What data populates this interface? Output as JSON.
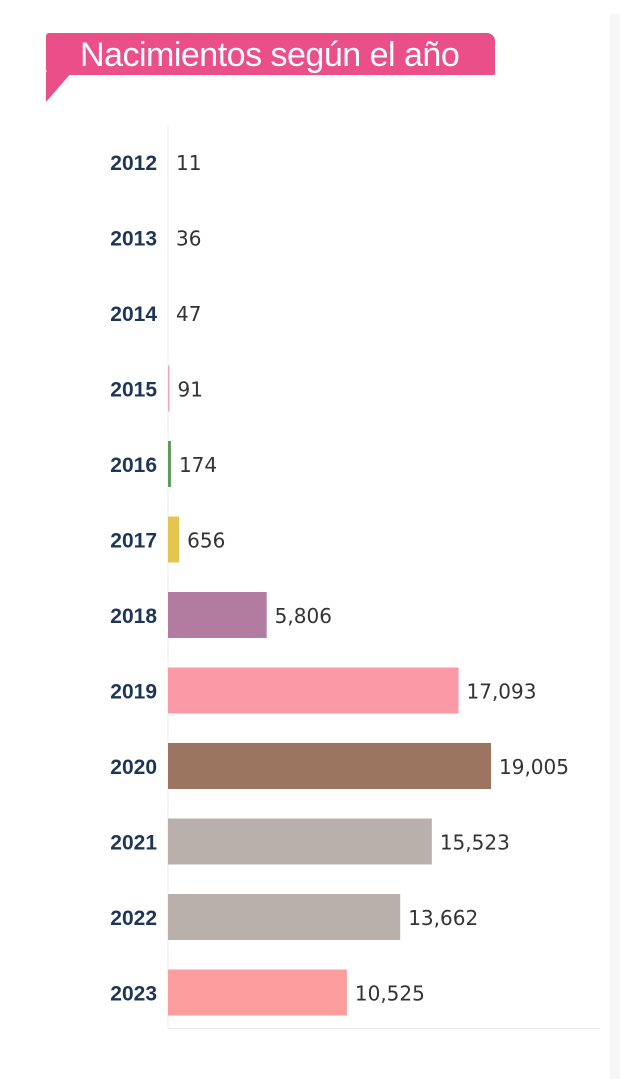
{
  "title": "Nacimientos según el año",
  "chart_data": {
    "type": "bar",
    "orientation": "horizontal",
    "categories": [
      "2012",
      "2013",
      "2014",
      "2015",
      "2016",
      "2017",
      "2018",
      "2019",
      "2020",
      "2021",
      "2022",
      "2023"
    ],
    "values": [
      11,
      36,
      47,
      91,
      174,
      656,
      5806,
      17093,
      19005,
      15523,
      13662,
      10525
    ],
    "value_labels": [
      "11",
      "36",
      "47",
      "91",
      "174",
      "656",
      "5,806",
      "17,093",
      "19,005",
      "15,523",
      "13,662",
      "10,525"
    ],
    "colors": [
      "#f2a7b4",
      "#f2a7b4",
      "#f2a7b4",
      "#f2a7b4",
      "#5f9c5a",
      "#e6c450",
      "#b27ba0",
      "#fb9aa6",
      "#9b7560",
      "#b9b0ab",
      "#b9b0ab",
      "#fb9d9c"
    ],
    "title": "Nacimientos según el año",
    "xlabel": "",
    "ylabel": "",
    "xlim": [
      0,
      19005
    ],
    "grid": false,
    "legend": "none"
  }
}
